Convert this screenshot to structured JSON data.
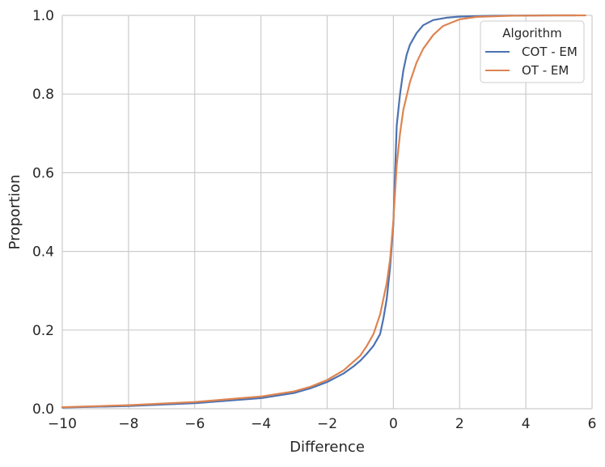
{
  "chart_data": {
    "type": "line",
    "title": "",
    "xlabel": "Difference",
    "ylabel": "Proportion",
    "xlim": [
      -10,
      6
    ],
    "ylim": [
      0,
      1
    ],
    "xticks": [
      -10,
      -8,
      -6,
      -4,
      -2,
      0,
      2,
      4,
      6
    ],
    "xtick_labels": [
      "−10",
      "−8",
      "−6",
      "−4",
      "−2",
      "0",
      "2",
      "4",
      "6"
    ],
    "yticks": [
      0,
      0.2,
      0.4,
      0.6,
      0.8,
      1.0
    ],
    "ytick_labels": [
      "0.0",
      "0.2",
      "0.4",
      "0.6",
      "0.8",
      "1.0"
    ],
    "grid": true,
    "legend": {
      "title": "Algorithm",
      "placement": "top-right"
    },
    "series": [
      {
        "name": "COT - EM",
        "color": "#4c72b0",
        "x": [
          -10,
          -8,
          -6,
          -4,
          -3,
          -2.5,
          -2,
          -1.5,
          -1.2,
          -1.0,
          -0.8,
          -0.6,
          -0.4,
          -0.3,
          -0.2,
          -0.1,
          0,
          0.05,
          0.1,
          0.2,
          0.3,
          0.4,
          0.5,
          0.7,
          0.9,
          1.2,
          1.6,
          2.0,
          3.0,
          4.5,
          5.5
        ],
        "y": [
          0.003,
          0.007,
          0.014,
          0.027,
          0.04,
          0.052,
          0.068,
          0.09,
          0.108,
          0.122,
          0.14,
          0.16,
          0.19,
          0.23,
          0.28,
          0.36,
          0.47,
          0.6,
          0.72,
          0.8,
          0.86,
          0.9,
          0.925,
          0.955,
          0.975,
          0.988,
          0.994,
          0.997,
          0.999,
          1.0,
          1.0
        ]
      },
      {
        "name": "OT - EM",
        "color": "#dd8452",
        "x": [
          -10,
          -8,
          -6,
          -4,
          -3,
          -2.5,
          -2,
          -1.5,
          -1.0,
          -0.8,
          -0.6,
          -0.4,
          -0.2,
          -0.1,
          0,
          0.1,
          0.2,
          0.3,
          0.5,
          0.7,
          0.9,
          1.2,
          1.5,
          2.0,
          2.5,
          3.5,
          5.0,
          5.8
        ],
        "y": [
          0.004,
          0.009,
          0.017,
          0.031,
          0.044,
          0.056,
          0.073,
          0.098,
          0.135,
          0.16,
          0.19,
          0.24,
          0.32,
          0.38,
          0.48,
          0.62,
          0.7,
          0.76,
          0.83,
          0.88,
          0.915,
          0.95,
          0.973,
          0.99,
          0.996,
          0.999,
          1.0,
          1.0
        ]
      }
    ]
  }
}
